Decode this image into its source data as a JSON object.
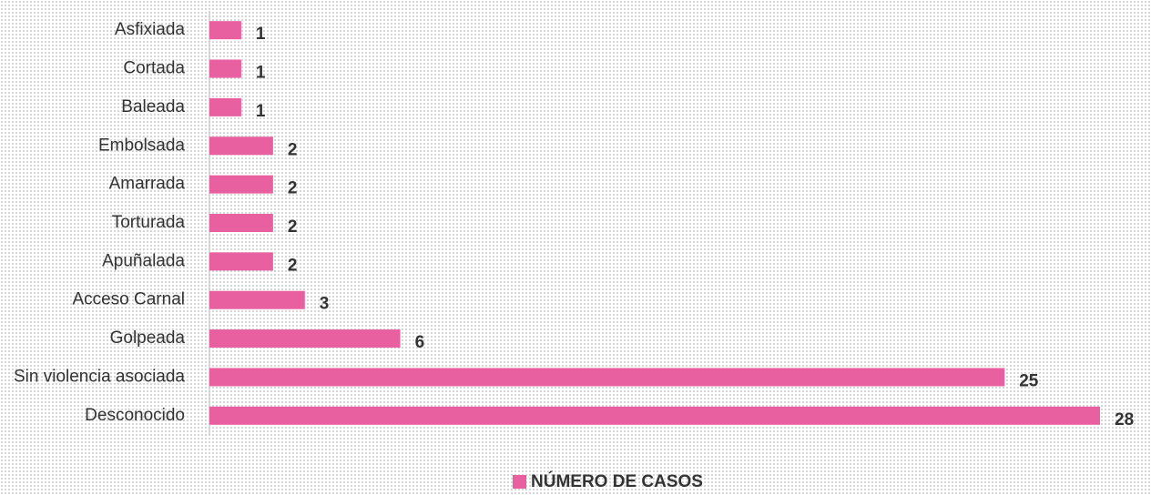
{
  "chart_data": {
    "type": "bar",
    "orientation": "horizontal",
    "categories": [
      "Asfixiada",
      "Cortada",
      "Baleada",
      "Embolsada",
      "Amarrada",
      "Torturada",
      "Apuñalada",
      "Acceso Carnal",
      "Golpeada",
      "Sin violencia asociada",
      "Desconocido"
    ],
    "series": [
      {
        "name": "NÚMERO DE CASOS",
        "color": "#e8609f",
        "values": [
          1,
          1,
          1,
          2,
          2,
          2,
          2,
          3,
          6,
          25,
          28
        ]
      }
    ],
    "legend": "bottom"
  }
}
